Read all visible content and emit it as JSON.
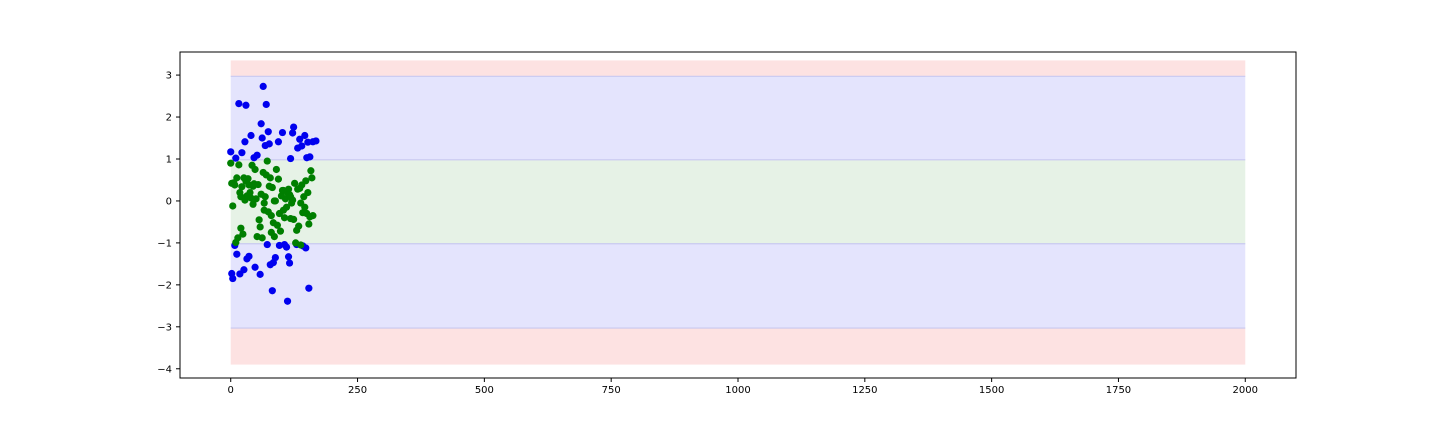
{
  "chart_data": {
    "type": "scatter",
    "title": "",
    "xlabel": "",
    "ylabel": "",
    "xlim": [
      -100,
      2100
    ],
    "ylim": [
      -4.22,
      3.55
    ],
    "x_ticks": [
      0,
      250,
      500,
      750,
      1000,
      1250,
      1500,
      1750,
      2000
    ],
    "y_ticks": [
      -4,
      -3,
      -2,
      -1,
      0,
      1,
      2,
      3
    ],
    "grid": false,
    "legend": "none",
    "bands": [
      {
        "y0": 2.97,
        "y1": 3.35,
        "x0": 0,
        "x1": 2000,
        "color": "#fde2e2"
      },
      {
        "y0": -3.9,
        "y1": -3.03,
        "x0": 0,
        "x1": 2000,
        "color": "#fde2e2"
      },
      {
        "y0": 0.98,
        "y1": 2.97,
        "x0": 0,
        "x1": 2000,
        "color": "#e4e4fd"
      },
      {
        "y0": -3.03,
        "y1": -1.02,
        "x0": 0,
        "x1": 2000,
        "color": "#e4e4fd"
      },
      {
        "y0": -1.02,
        "y1": 0.98,
        "x0": 0,
        "x1": 2000,
        "color": "#e6f2e6"
      }
    ],
    "band_edges": [
      2.97,
      0.98,
      -1.02,
      -3.03
    ],
    "series": [
      {
        "color": "#0000ee",
        "points": [
          [
            0,
            1.17
          ],
          [
            2,
            -1.73
          ],
          [
            4,
            -1.85
          ],
          [
            8,
            -1.06
          ],
          [
            10,
            1.02
          ],
          [
            12,
            -1.27
          ],
          [
            16,
            2.32
          ],
          [
            18,
            -1.74
          ],
          [
            22,
            1.15
          ],
          [
            28,
            1.41
          ],
          [
            30,
            2.28
          ],
          [
            32,
            -1.38
          ],
          [
            36,
            -1.32
          ],
          [
            40,
            1.56
          ],
          [
            46,
            1.03
          ],
          [
            52,
            1.09
          ],
          [
            58,
            -1.75
          ],
          [
            60,
            1.84
          ],
          [
            62,
            1.5
          ],
          [
            64,
            2.73
          ],
          [
            68,
            1.32
          ],
          [
            70,
            2.3
          ],
          [
            72,
            -1.04
          ],
          [
            74,
            1.65
          ],
          [
            76,
            1.36
          ],
          [
            78,
            -1.52
          ],
          [
            82,
            -2.14
          ],
          [
            84,
            -1.47
          ],
          [
            88,
            -1.35
          ],
          [
            94,
            1.41
          ],
          [
            96,
            -1.06
          ],
          [
            102,
            1.63
          ],
          [
            106,
            -1.04
          ],
          [
            110,
            -1.1
          ],
          [
            112,
            -2.39
          ],
          [
            114,
            -1.33
          ],
          [
            116,
            -1.48
          ],
          [
            118,
            1.01
          ],
          [
            122,
            1.62
          ],
          [
            124,
            1.76
          ],
          [
            132,
            1.26
          ],
          [
            136,
            1.47
          ],
          [
            140,
            1.31
          ],
          [
            142,
            -1.07
          ],
          [
            146,
            1.56
          ],
          [
            148,
            -1.12
          ],
          [
            150,
            1.03
          ],
          [
            152,
            1.4
          ],
          [
            154,
            -2.08
          ],
          [
            156,
            1.05
          ],
          [
            162,
            1.41
          ],
          [
            26,
            -1.64
          ],
          [
            48,
            -1.58
          ],
          [
            130,
            -1.04
          ],
          [
            168,
            1.43
          ]
        ]
      },
      {
        "color": "#007f00",
        "points": [
          [
            0,
            0.9
          ],
          [
            2,
            0.42
          ],
          [
            4,
            -0.12
          ],
          [
            6,
            0.43
          ],
          [
            8,
            0.38
          ],
          [
            10,
            -0.99
          ],
          [
            12,
            0.55
          ],
          [
            14,
            -0.88
          ],
          [
            16,
            0.86
          ],
          [
            18,
            0.2
          ],
          [
            20,
            -0.65
          ],
          [
            22,
            0.34
          ],
          [
            24,
            -0.79
          ],
          [
            26,
            0.55
          ],
          [
            28,
            0.02
          ],
          [
            30,
            0.47
          ],
          [
            32,
            0.12
          ],
          [
            34,
            0.53
          ],
          [
            36,
            0.38
          ],
          [
            38,
            0.2
          ],
          [
            40,
            0.07
          ],
          [
            42,
            0.85
          ],
          [
            44,
            -0.08
          ],
          [
            46,
            0.41
          ],
          [
            48,
            0.75
          ],
          [
            50,
            0.05
          ],
          [
            52,
            -0.85
          ],
          [
            54,
            0.39
          ],
          [
            56,
            -0.45
          ],
          [
            58,
            -0.62
          ],
          [
            60,
            0.16
          ],
          [
            62,
            -0.88
          ],
          [
            64,
            0.68
          ],
          [
            66,
            -0.22
          ],
          [
            68,
            0.1
          ],
          [
            70,
            0.62
          ],
          [
            72,
            0.95
          ],
          [
            74,
            -0.26
          ],
          [
            76,
            0.35
          ],
          [
            78,
            0.55
          ],
          [
            80,
            -0.35
          ],
          [
            82,
            0.32
          ],
          [
            84,
            -0.52
          ],
          [
            86,
            -0.85
          ],
          [
            88,
            0.0
          ],
          [
            90,
            0.75
          ],
          [
            92,
            -0.58
          ],
          [
            94,
            0.52
          ],
          [
            96,
            -0.3
          ],
          [
            98,
            -0.72
          ],
          [
            100,
            0.12
          ],
          [
            102,
            0.25
          ],
          [
            104,
            -0.22
          ],
          [
            106,
            -0.4
          ],
          [
            108,
            0.05
          ],
          [
            110,
            -0.15
          ],
          [
            112,
            0.2
          ],
          [
            114,
            0.28
          ],
          [
            116,
            0.15
          ],
          [
            118,
            -0.42
          ],
          [
            120,
            -0.05
          ],
          [
            122,
            0.02
          ],
          [
            124,
            -0.44
          ],
          [
            126,
            0.42
          ],
          [
            128,
            -1.0
          ],
          [
            130,
            -0.7
          ],
          [
            132,
            0.28
          ],
          [
            134,
            -0.6
          ],
          [
            136,
            0.3
          ],
          [
            138,
            -0.05
          ],
          [
            140,
            0.38
          ],
          [
            142,
            -0.28
          ],
          [
            144,
            0.1
          ],
          [
            146,
            -0.15
          ],
          [
            148,
            0.48
          ],
          [
            150,
            -0.3
          ],
          [
            152,
            0.2
          ],
          [
            154,
            -0.55
          ],
          [
            156,
            -0.38
          ],
          [
            158,
            0.72
          ],
          [
            160,
            0.55
          ],
          [
            162,
            -0.35
          ],
          [
            20,
            0.1
          ],
          [
            44,
            0.35
          ],
          [
            66,
            -0.05
          ],
          [
            80,
            -0.75
          ],
          [
            118,
            0.1
          ],
          [
            138,
            -1.05
          ],
          [
            104,
            0.25
          ],
          [
            86,
            0.0
          ]
        ]
      }
    ]
  }
}
